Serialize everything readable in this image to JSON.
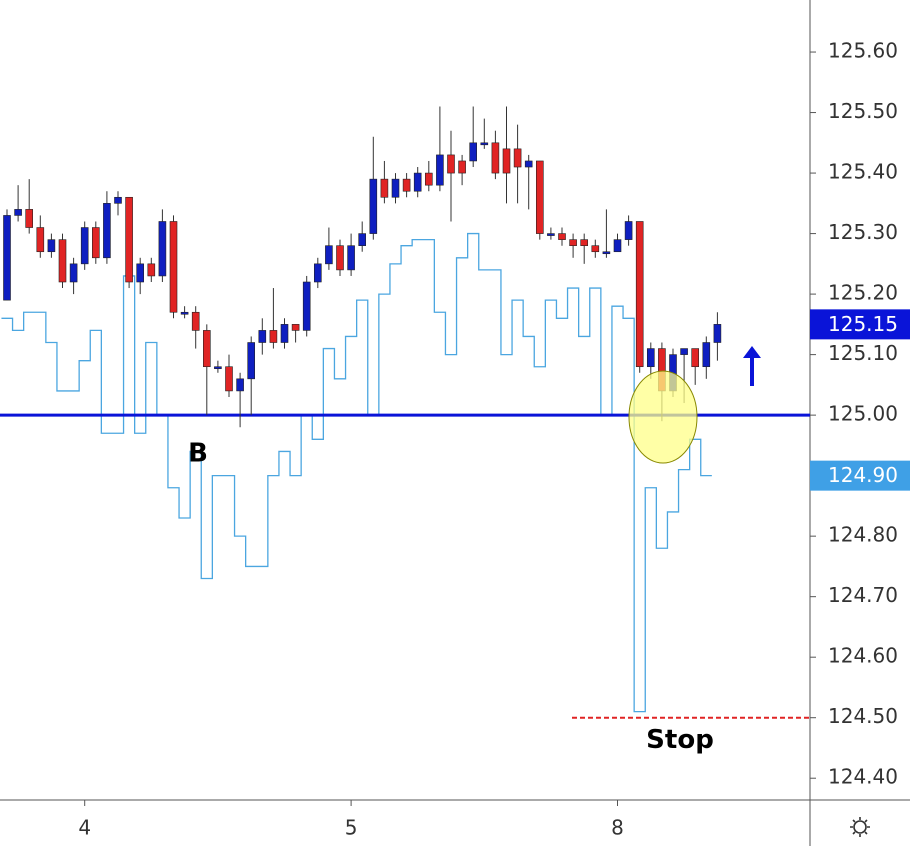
{
  "chart_data": {
    "type": "candlestick",
    "categories": [
      null,
      null,
      null,
      null,
      null,
      null,
      null,
      "4",
      null,
      null,
      null,
      null,
      null,
      null,
      null,
      null,
      null,
      null,
      null,
      null,
      null,
      null,
      null,
      null,
      null,
      null,
      null,
      null,
      null,
      null,
      null,
      "5",
      null,
      null,
      null,
      null,
      null,
      null,
      null,
      null,
      null,
      null,
      null,
      null,
      null,
      null,
      null,
      null,
      null,
      null,
      null,
      null,
      null,
      null,
      null,
      "8",
      null,
      null,
      null,
      null,
      null,
      null,
      null,
      null,
      null
    ],
    "open": [
      125.19,
      125.33,
      125.34,
      125.31,
      125.27,
      125.29,
      125.22,
      125.25,
      125.31,
      125.26,
      125.35,
      125.36,
      125.22,
      125.25,
      125.23,
      125.32,
      125.17,
      125.17,
      125.14,
      125.08,
      125.08,
      125.04,
      125.06,
      125.12,
      125.14,
      125.12,
      125.15,
      125.14,
      125.22,
      125.25,
      125.28,
      125.24,
      125.28,
      125.3,
      125.39,
      125.36,
      125.39,
      125.37,
      125.4,
      125.38,
      125.43,
      125.42,
      125.42,
      125.45,
      125.45,
      125.44,
      125.44,
      125.41,
      125.42,
      125.3,
      125.3,
      125.29,
      125.29,
      125.28,
      125.27,
      125.27,
      125.29,
      125.32,
      125.08,
      125.11,
      125.04,
      125.1,
      125.11,
      125.08,
      125.12
    ],
    "high": [
      125.34,
      125.38,
      125.39,
      125.33,
      125.3,
      125.3,
      125.26,
      125.32,
      125.32,
      125.37,
      125.37,
      125.36,
      125.26,
      125.26,
      125.34,
      125.33,
      125.18,
      125.18,
      125.15,
      125.09,
      125.1,
      125.07,
      125.13,
      125.16,
      125.21,
      125.16,
      125.15,
      125.23,
      125.26,
      125.31,
      125.29,
      125.3,
      125.32,
      125.46,
      125.42,
      125.4,
      125.4,
      125.41,
      125.42,
      125.51,
      125.47,
      125.43,
      125.51,
      125.49,
      125.47,
      125.51,
      125.48,
      125.43,
      125.42,
      125.31,
      125.31,
      125.3,
      125.3,
      125.29,
      125.34,
      125.3,
      125.33,
      125.32,
      125.12,
      125.12,
      125.11,
      125.11,
      125.11,
      125.13,
      125.17
    ],
    "low": [
      125.19,
      125.32,
      125.3,
      125.26,
      125.26,
      125.21,
      125.2,
      125.24,
      125.25,
      125.25,
      125.33,
      125.21,
      125.2,
      125.22,
      125.22,
      125.16,
      125.16,
      125.11,
      125.0,
      125.07,
      125.03,
      124.98,
      125.0,
      125.1,
      125.11,
      125.11,
      125.12,
      125.13,
      125.21,
      125.24,
      125.23,
      125.23,
      125.27,
      125.29,
      125.35,
      125.35,
      125.36,
      125.36,
      125.37,
      125.37,
      125.32,
      125.38,
      125.41,
      125.44,
      125.39,
      125.35,
      125.35,
      125.34,
      125.29,
      125.29,
      125.28,
      125.26,
      125.25,
      125.26,
      125.26,
      125.27,
      125.28,
      125.07,
      125.06,
      124.99,
      125.03,
      125.02,
      125.05,
      125.06,
      125.09
    ],
    "close": [
      125.33,
      125.34,
      125.31,
      125.27,
      125.29,
      125.22,
      125.25,
      125.31,
      125.26,
      125.35,
      125.36,
      125.22,
      125.25,
      125.23,
      125.32,
      125.17,
      125.17,
      125.14,
      125.08,
      125.08,
      125.04,
      125.06,
      125.12,
      125.14,
      125.12,
      125.15,
      125.14,
      125.22,
      125.25,
      125.28,
      125.24,
      125.28,
      125.3,
      125.39,
      125.36,
      125.39,
      125.37,
      125.4,
      125.38,
      125.43,
      125.4,
      125.4,
      125.45,
      125.45,
      125.4,
      125.4,
      125.41,
      125.42,
      125.3,
      125.3,
      125.29,
      125.28,
      125.28,
      125.27,
      125.27,
      125.29,
      125.32,
      125.08,
      125.11,
      125.04,
      125.1,
      125.11,
      125.08,
      125.12,
      125.15
    ],
    "up_color": "#0f1fc0",
    "down_color": "#e02424",
    "wick_color": "#333333",
    "line": {
      "color": "#4ba6e0",
      "values": [
        125.16,
        125.14,
        125.17,
        125.17,
        125.12,
        125.04,
        125.04,
        125.09,
        125.14,
        124.97,
        124.97,
        125.23,
        124.97,
        125.12,
        125.0,
        124.88,
        124.83,
        124.94,
        124.73,
        124.9,
        124.9,
        124.8,
        124.75,
        124.75,
        124.9,
        124.94,
        124.9,
        125.0,
        124.96,
        125.11,
        125.06,
        125.13,
        125.19,
        125.0,
        125.2,
        125.25,
        125.28,
        125.29,
        125.29,
        125.17,
        125.1,
        125.26,
        125.3,
        125.24,
        125.24,
        125.1,
        125.19,
        125.13,
        125.08,
        125.19,
        125.16,
        125.21,
        125.13,
        125.21,
        125.0,
        125.18,
        125.16,
        124.51,
        124.88,
        124.78,
        124.84,
        124.91,
        124.96,
        124.9,
        null
      ]
    },
    "ylim": [
      124.364,
      125.686
    ],
    "yticks": [
      {
        "value": 124.4,
        "label": "124.40"
      },
      {
        "value": 124.5,
        "label": "124.50"
      },
      {
        "value": 124.6,
        "label": "124.60"
      },
      {
        "value": 124.7,
        "label": "124.70"
      },
      {
        "value": 124.8,
        "label": "124.80"
      },
      {
        "value": 124.9,
        "label": "124.90"
      },
      {
        "value": 125.0,
        "label": "125.00"
      },
      {
        "value": 125.1,
        "label": "125.10"
      },
      {
        "value": 125.2,
        "label": "125.20"
      },
      {
        "value": 125.3,
        "label": "125.30"
      },
      {
        "value": 125.4,
        "label": "125.40"
      },
      {
        "value": 125.5,
        "label": "125.50"
      },
      {
        "value": 125.6,
        "label": "125.60"
      }
    ],
    "price_labels": [
      {
        "value": 125.15,
        "label": "125.15",
        "color": "#0a14d8"
      },
      {
        "value": 124.9,
        "label": "124.90",
        "color": "#3fa0e6"
      }
    ],
    "hlines": [
      {
        "value": 125.0,
        "color": "#0a14d8"
      },
      {
        "value": 124.5,
        "color": "#e02424",
        "label": "Stop"
      }
    ],
    "annotations": [
      "B"
    ]
  }
}
